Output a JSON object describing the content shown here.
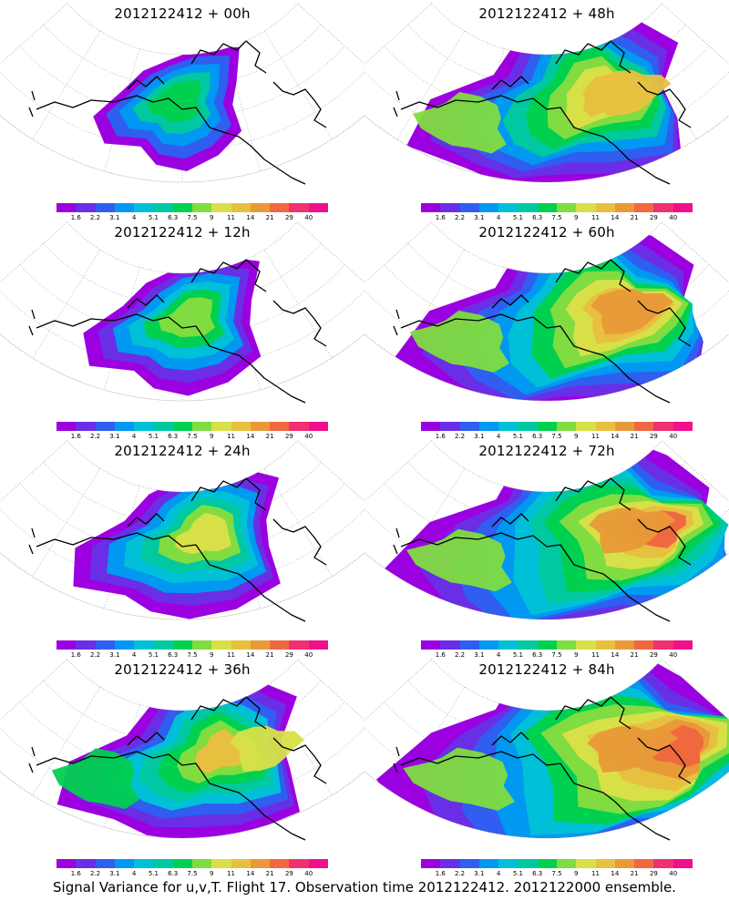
{
  "panels": [
    {
      "title": "2012122412 + 00h",
      "col": 0,
      "row": 0,
      "level": 0
    },
    {
      "title": "2012122412 + 48h",
      "col": 1,
      "row": 0,
      "level": 4
    },
    {
      "title": "2012122412 + 12h",
      "col": 0,
      "row": 1,
      "level": 1
    },
    {
      "title": "2012122412 + 60h",
      "col": 1,
      "row": 1,
      "level": 5
    },
    {
      "title": "2012122412 + 24h",
      "col": 0,
      "row": 2,
      "level": 2
    },
    {
      "title": "2012122412 + 72h",
      "col": 1,
      "row": 2,
      "level": 6
    },
    {
      "title": "2012122412 + 36h",
      "col": 0,
      "row": 3,
      "level": 3
    },
    {
      "title": "2012122412 + 84h",
      "col": 1,
      "row": 3,
      "level": 7
    }
  ],
  "colorbar": {
    "labels": [
      "1.6",
      "2.2",
      "3.1",
      "4",
      "5.1",
      "6.3",
      "7.5",
      "9",
      "11",
      "14",
      "21",
      "29",
      "40"
    ],
    "colors": [
      "#9b00e0",
      "#6a2ee6",
      "#2f5ef0",
      "#0098f0",
      "#00c0d8",
      "#00c8a0",
      "#00d050",
      "#80dc40",
      "#d8e048",
      "#e8c040",
      "#e89a38",
      "#f06840",
      "#f03070",
      "#f0108c"
    ]
  },
  "footer": {
    "text": "Signal Variance for u,v,T. Flight 17. Observation time 2012122412. 2012122000 ensemble."
  }
}
